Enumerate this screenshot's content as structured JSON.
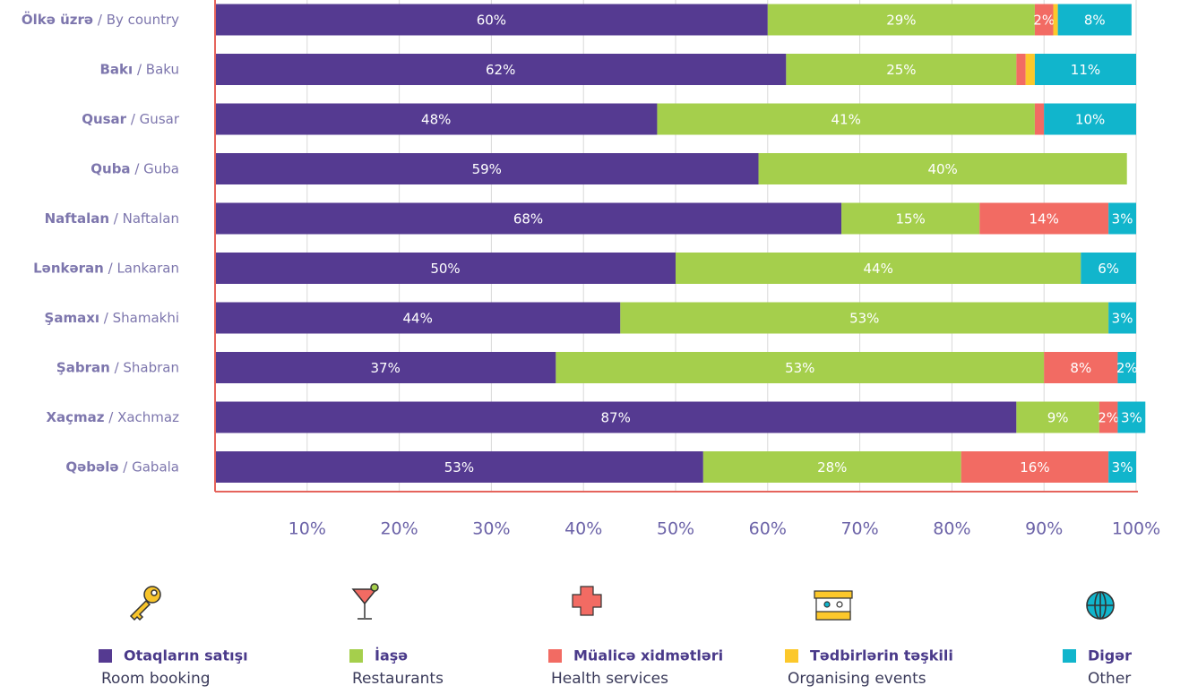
{
  "chart_data": {
    "type": "stacked_barh",
    "categories": [
      "Ölkə üzrə / By country",
      "Bakı / Baku",
      "Qusar / Gusar",
      "Quba / Guba",
      "Naftalan / Naftalan",
      "Lənkəran / Lankaran",
      "Şamaxı / Shamakhi",
      "Şabran / Shabran",
      "Xaçmaz / Xachmaz",
      "Qəbələ / Gabala"
    ],
    "series": [
      {
        "name": "Otaqların satışı",
        "name_en": "Room booking",
        "color": "#553a91",
        "values": [
          60,
          62,
          48,
          59,
          68,
          50,
          44,
          37,
          87,
          53
        ],
        "value_labels": [
          "60%",
          "62%",
          "48%",
          "59%",
          "68%",
          "50%",
          "44%",
          "37%",
          "87%",
          "53%"
        ]
      },
      {
        "name": "İaşə",
        "name_en": "Restaurants",
        "color": "#a5cf4c",
        "values": [
          29,
          25,
          41,
          40,
          15,
          44,
          53,
          53,
          9,
          28
        ],
        "value_labels": [
          "29%",
          "25%",
          "41%",
          "40%",
          "15%",
          "44%",
          "53%",
          "53%",
          "9%",
          "28%"
        ]
      },
      {
        "name": "Müalicə xidmətləri",
        "name_en": "Health services",
        "color": "#f26b63",
        "values": [
          2,
          1,
          1,
          0,
          14,
          0,
          0,
          8,
          2,
          16
        ],
        "value_labels": [
          "2%",
          null,
          null,
          null,
          "14%",
          null,
          null,
          "8%",
          "2%",
          "16%"
        ]
      },
      {
        "name": "Tədbirlərin təşkili",
        "name_en": "Organising events",
        "color": "#fcc82b",
        "values": [
          0.5,
          1,
          0,
          0,
          0,
          0,
          0,
          0,
          0,
          0
        ],
        "value_labels": [
          null,
          null,
          null,
          null,
          null,
          null,
          null,
          null,
          null,
          null
        ]
      },
      {
        "name": "Digər",
        "name_en": "Other",
        "color": "#11b5cc",
        "values": [
          8,
          11,
          10,
          0,
          3,
          6,
          3,
          2,
          3,
          3
        ],
        "value_labels": [
          "8%",
          "11%",
          "10%",
          null,
          "3%",
          "6%",
          "3%",
          "2%",
          "3%",
          "3%"
        ]
      }
    ],
    "xlim": [
      0,
      100
    ],
    "xticks": [
      {
        "value": 10,
        "label": "10%"
      },
      {
        "value": 20,
        "label": "20%"
      },
      {
        "value": 30,
        "label": "30%"
      },
      {
        "value": 40,
        "label": "40%"
      },
      {
        "value": 50,
        "label": "50%"
      },
      {
        "value": 60,
        "label": "60%"
      },
      {
        "value": 70,
        "label": "70%"
      },
      {
        "value": 80,
        "label": "80%"
      },
      {
        "value": 90,
        "label": "90%"
      },
      {
        "value": 100,
        "label": "100%"
      }
    ],
    "grid": true
  }
}
